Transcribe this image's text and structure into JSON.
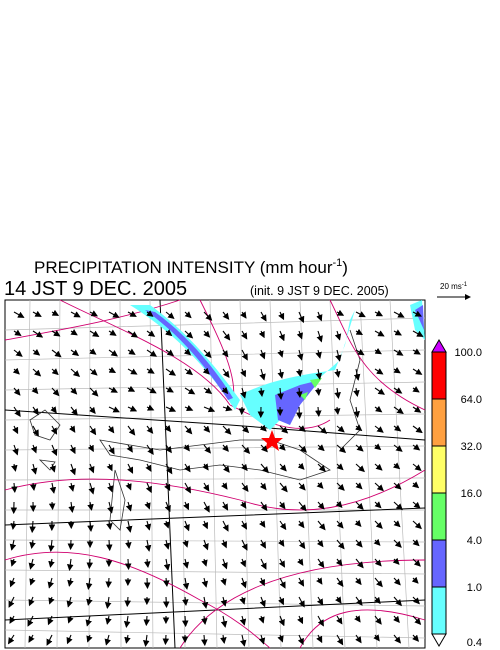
{
  "header": {
    "title": "PRECIPITATION INTENSITY (mm hour",
    "title_sup": "-1",
    "title_end": ")",
    "time": "14 JST 9 DEC. 2005",
    "init": "(init. 9 JST 9 DEC. 2005)",
    "scale_label": "20 ms",
    "scale_sup": "-1"
  },
  "colorbar": {
    "levels": [
      {
        "value": 100,
        "label": "100.0"
      },
      {
        "value": 64,
        "label": "64.0"
      },
      {
        "value": 32,
        "label": "32.0"
      },
      {
        "value": 16,
        "label": "16.0"
      },
      {
        "value": 4,
        "label": "4.0"
      },
      {
        "value": 1,
        "label": "1.0"
      },
      {
        "value": 0.4,
        "label": "0.4"
      }
    ],
    "colors": [
      "#ff0000",
      "#ffa040",
      "#ffff66",
      "#66ff66",
      "#6666ff",
      "#66ffff"
    ],
    "over_color": "#cc00ff",
    "under_color": "#ffffff"
  }
}
